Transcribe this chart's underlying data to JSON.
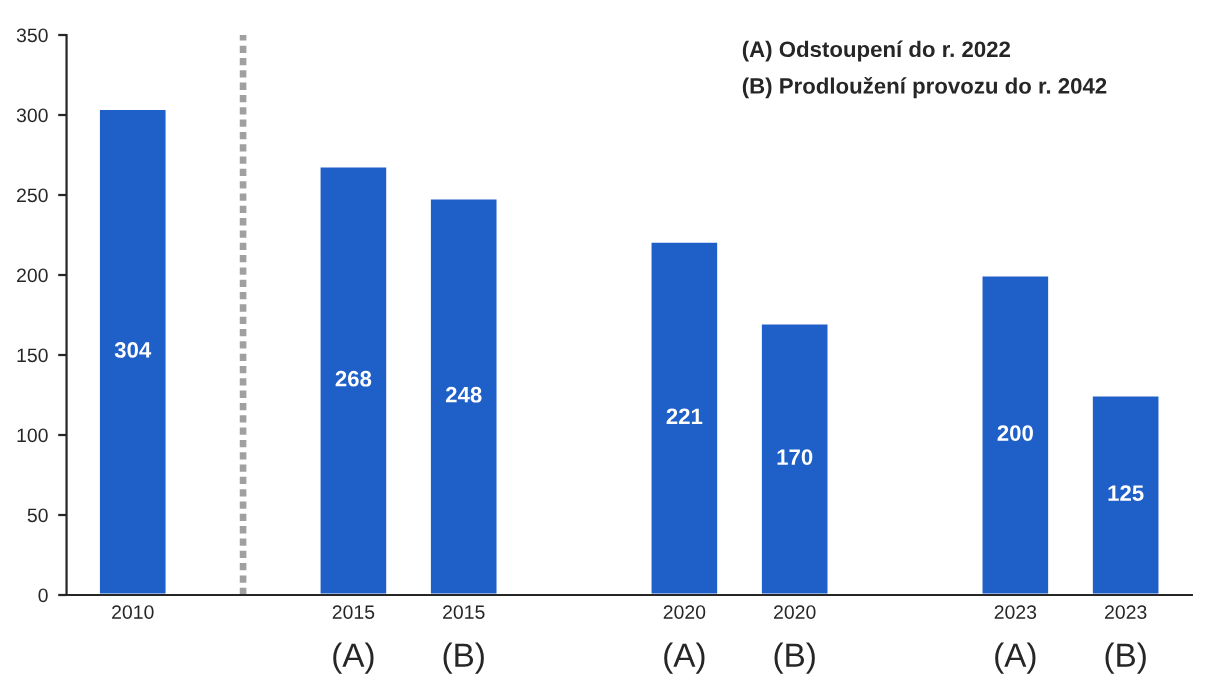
{
  "chart_data": {
    "type": "bar",
    "categories": [
      "2010",
      null,
      "2015\n(A)",
      "2015\n(B)",
      null,
      "2020\n(A)",
      "2020\n(B)",
      null,
      "2023\n(A)",
      "2023\n(B)"
    ],
    "values": [
      304,
      null,
      268,
      248,
      null,
      221,
      170,
      null,
      200,
      125
    ],
    "color": "#1f5fc8",
    "ylim": [
      0,
      350
    ],
    "yticks": [
      0,
      50,
      100,
      150,
      200,
      250,
      300,
      350
    ],
    "data_labels": true,
    "grid": false,
    "legend": false,
    "annotations": [
      "(A) Odstoupení do r. 2022",
      "(B) Prodloužení provozu do r. 2042"
    ]
  }
}
